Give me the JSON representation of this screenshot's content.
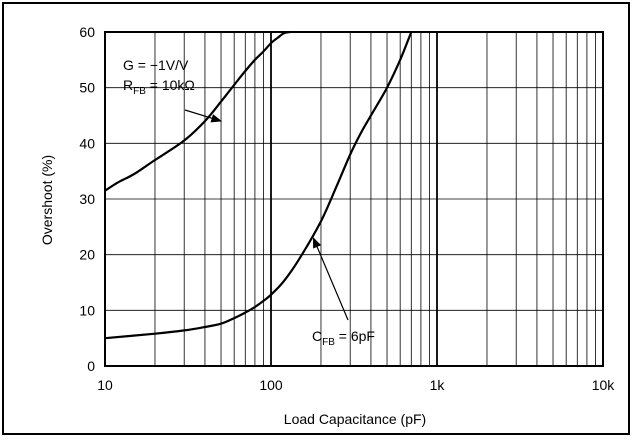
{
  "chart_data": {
    "type": "line",
    "xlabel": "Load Capacitance (pF)",
    "ylabel": "Overshoot (%)",
    "x_scale": "log",
    "xlim": [
      10,
      10000
    ],
    "ylim": [
      0,
      60
    ],
    "grid": true,
    "x_ticks": [
      {
        "value": 10,
        "label": "10"
      },
      {
        "value": 100,
        "label": "100"
      },
      {
        "value": 1000,
        "label": "1k"
      },
      {
        "value": 10000,
        "label": "10k"
      }
    ],
    "y_ticks": [
      0,
      10,
      20,
      30,
      40,
      50,
      60
    ],
    "series": [
      {
        "x": [
          10,
          12,
          15,
          20,
          30,
          40,
          50,
          60,
          70,
          80,
          90,
          100,
          110,
          120,
          130
        ],
        "y": [
          31.5,
          33,
          34.5,
          37,
          40.5,
          44,
          47.5,
          50.5,
          53,
          55,
          56.5,
          58,
          59,
          59.8,
          60
        ]
      },
      {
        "x": [
          10,
          20,
          30,
          40,
          50,
          60,
          70,
          80,
          90,
          100,
          120,
          150,
          200,
          250,
          300,
          350,
          400,
          500,
          600,
          700
        ],
        "y": [
          5,
          5.8,
          6.4,
          7,
          7.6,
          8.6,
          9.6,
          10.6,
          11.7,
          12.8,
          15.3,
          19.5,
          26,
          32.5,
          38,
          42,
          45,
          50,
          55,
          60
        ]
      }
    ],
    "annotations": [
      {
        "lines": [
          {
            "text": "G = −1V/V"
          },
          {
            "text": "R",
            "sub": "FB",
            "after": " = 10kΩ"
          }
        ],
        "target": {
          "x": 50,
          "y": 44
        }
      },
      {
        "lines": [
          {
            "text": "C",
            "sub": "FB",
            "after": " = 6pF"
          }
        ],
        "target": {
          "x": 180,
          "y": 23
        }
      }
    ]
  }
}
